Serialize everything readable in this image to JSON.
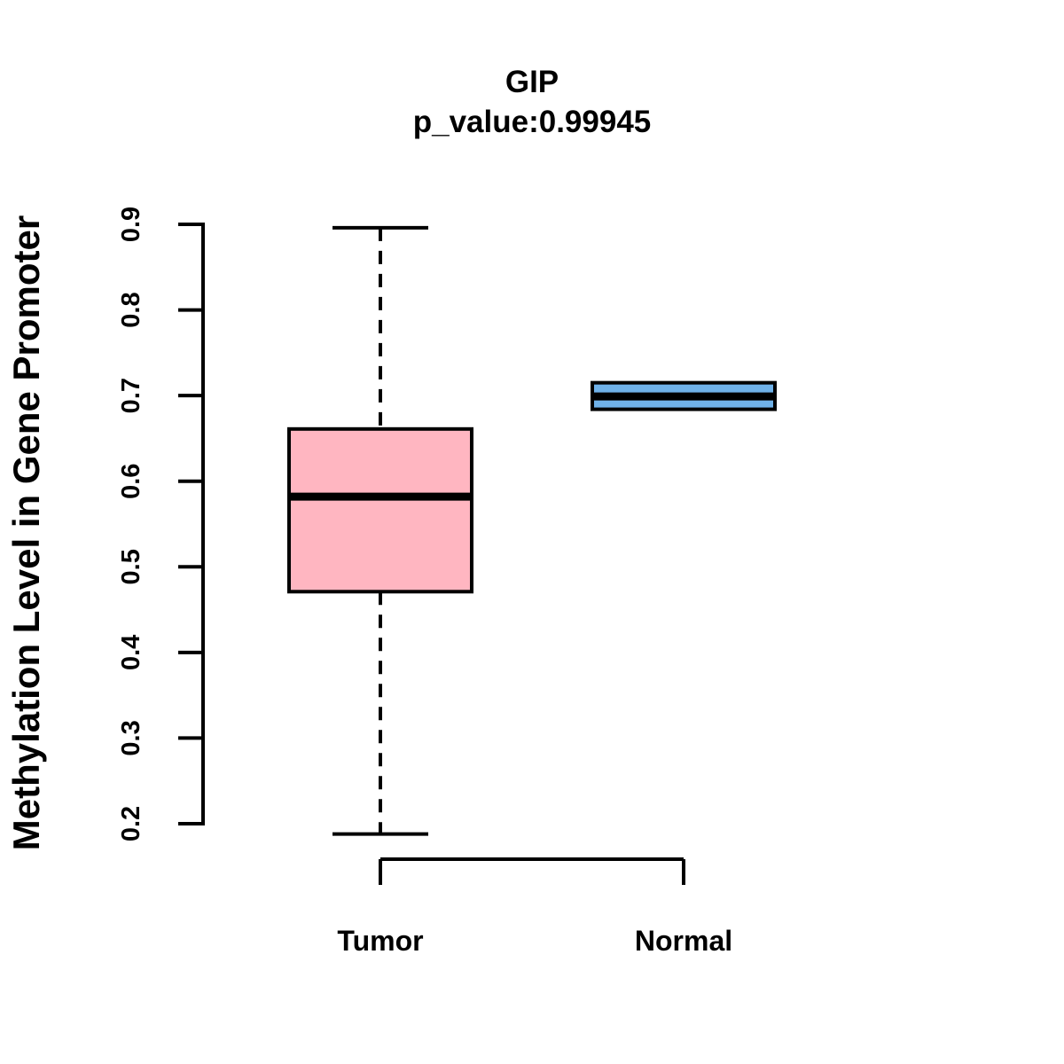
{
  "figure": {
    "title": "GIP",
    "subtitle": "p_value:0.99945",
    "ylabel": "Methylation Level in Gene Promoter"
  },
  "chart_data": {
    "type": "boxplot",
    "title": "GIP",
    "subtitle": "p_value:0.99945",
    "xlabel": "",
    "ylabel": "Methylation Level in Gene Promoter",
    "ylim": [
      0.2,
      0.9
    ],
    "yticks": [
      0.2,
      0.3,
      0.4,
      0.5,
      0.6,
      0.7,
      0.8,
      0.9
    ],
    "grid": false,
    "legend": "none",
    "categories": [
      "Tumor",
      "Normal"
    ],
    "colors": {
      "line": "#000000",
      "tumor_fill": "#FFB6C1",
      "normal_fill": "#6FB1E8",
      "background": "#FFFFFF"
    },
    "series": [
      {
        "name": "Tumor",
        "color": "#FFB6C1",
        "whisker_low": 0.188,
        "q1": 0.471,
        "median": 0.582,
        "q3": 0.661,
        "whisker_high": 0.896,
        "whisker_style": "dashed"
      },
      {
        "name": "Normal",
        "color": "#6FB1E8",
        "whisker_low": 0.684,
        "q1": 0.684,
        "median": 0.699,
        "q3": 0.715,
        "whisker_high": 0.715,
        "whisker_style": "dashed"
      }
    ]
  }
}
